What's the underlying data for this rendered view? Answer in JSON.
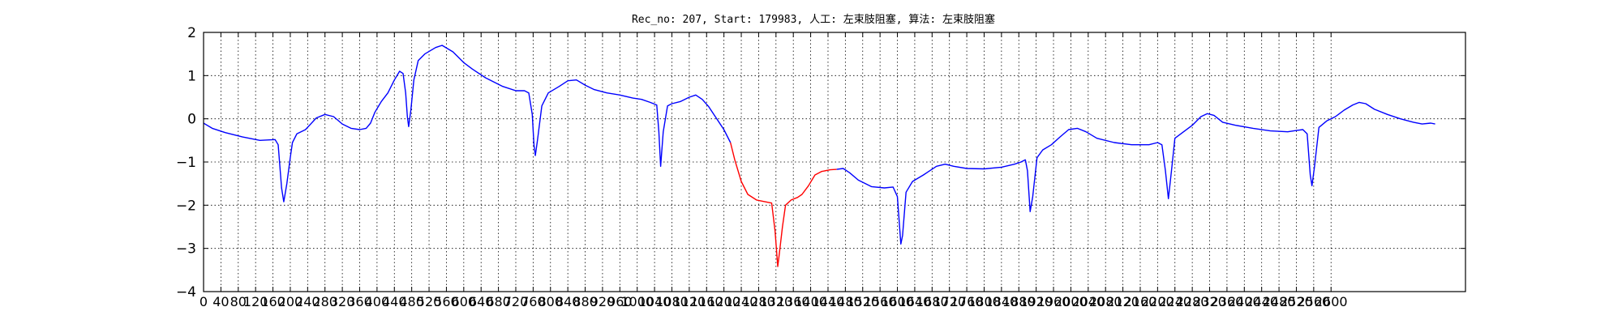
{
  "chart_data": {
    "type": "line",
    "title": "Rec_no: 207, Start: 179983, 人工: 左束肢阻塞, 算法: 左束肢阻塞",
    "xlabel": "",
    "ylabel": "",
    "xlim": [
      0,
      2910
    ],
    "ylim": [
      -4,
      2
    ],
    "grid": true,
    "yticks": [
      2,
      1,
      0,
      -1,
      -2,
      -3,
      -4
    ],
    "xticks": [
      0,
      40,
      80,
      120,
      160,
      200,
      240,
      280,
      320,
      360,
      400,
      440,
      480,
      520,
      560,
      600,
      640,
      680,
      720,
      760,
      800,
      840,
      880,
      920,
      960,
      1000,
      1040,
      1080,
      1120,
      1160,
      1200,
      1240,
      1280,
      1320,
      1360,
      1400,
      1440,
      1480,
      1520,
      1560,
      1600,
      1640,
      1680,
      1720,
      1760,
      1800,
      1840,
      1880,
      1920,
      1960,
      2000,
      2040,
      2080,
      2120,
      2160,
      2200,
      2240,
      2280,
      2320,
      2360,
      2400,
      2440,
      2480,
      2520,
      2560,
      2600
    ],
    "xtick_labels": [
      "0",
      "40",
      "80",
      "120",
      "160",
      "200",
      "240",
      "280",
      "320",
      "360",
      "400",
      "440",
      "480",
      "520",
      "560",
      "600",
      "640",
      "680",
      "720",
      "760",
      "800",
      "840",
      "880",
      "920",
      "960",
      "1000",
      "1040",
      "1080",
      "1120",
      "1160",
      "1200",
      "1240",
      "1280",
      "1320",
      "1360",
      "1400",
      "1440",
      "1480",
      "1520",
      "1560",
      "1600",
      "1640",
      "1680",
      "1720",
      "1760",
      "1800",
      "1840",
      "1880",
      "1920",
      "1960",
      "2000",
      "2040",
      "2080",
      "2120",
      "2160",
      "2200",
      "2240",
      "2280",
      "2320",
      "2360",
      "2400",
      "2440",
      "2480",
      "2520",
      "2560",
      "2600"
    ],
    "series": [
      {
        "color": "#0000ff",
        "points": [
          [
            0,
            -0.1
          ],
          [
            20,
            -0.22
          ],
          [
            50,
            -0.32
          ],
          [
            90,
            -0.42
          ],
          [
            130,
            -0.5
          ],
          [
            165,
            -0.48
          ],
          [
            172,
            -0.6
          ],
          [
            180,
            -1.6
          ],
          [
            185,
            -1.92
          ],
          [
            192,
            -1.5
          ],
          [
            200,
            -0.9
          ],
          [
            205,
            -0.55
          ],
          [
            215,
            -0.35
          ],
          [
            235,
            -0.25
          ],
          [
            260,
            0.02
          ],
          [
            280,
            0.1
          ],
          [
            300,
            0.05
          ],
          [
            320,
            -0.12
          ],
          [
            340,
            -0.22
          ],
          [
            360,
            -0.25
          ],
          [
            375,
            -0.22
          ],
          [
            385,
            -0.1
          ],
          [
            395,
            0.15
          ],
          [
            410,
            0.4
          ],
          [
            425,
            0.6
          ],
          [
            440,
            0.9
          ],
          [
            452,
            1.1
          ],
          [
            460,
            1.05
          ],
          [
            466,
            0.6
          ],
          [
            470,
            0.05
          ],
          [
            473,
            -0.18
          ],
          [
            478,
            0.2
          ],
          [
            485,
            0.9
          ],
          [
            495,
            1.35
          ],
          [
            510,
            1.5
          ],
          [
            535,
            1.65
          ],
          [
            550,
            1.7
          ],
          [
            575,
            1.55
          ],
          [
            600,
            1.3
          ],
          [
            620,
            1.15
          ],
          [
            650,
            0.95
          ],
          [
            690,
            0.75
          ],
          [
            720,
            0.65
          ],
          [
            740,
            0.65
          ],
          [
            750,
            0.6
          ],
          [
            758,
            0.1
          ],
          [
            762,
            -0.6
          ],
          [
            765,
            -0.85
          ],
          [
            770,
            -0.5
          ],
          [
            780,
            0.3
          ],
          [
            795,
            0.6
          ],
          [
            820,
            0.75
          ],
          [
            840,
            0.88
          ],
          [
            860,
            0.9
          ],
          [
            880,
            0.78
          ],
          [
            900,
            0.68
          ],
          [
            930,
            0.6
          ],
          [
            960,
            0.55
          ],
          [
            990,
            0.48
          ],
          [
            1010,
            0.45
          ],
          [
            1030,
            0.38
          ],
          [
            1045,
            0.32
          ],
          [
            1050,
            -0.3
          ],
          [
            1054,
            -1.1
          ],
          [
            1060,
            -0.3
          ],
          [
            1070,
            0.3
          ],
          [
            1080,
            0.35
          ],
          [
            1100,
            0.4
          ],
          [
            1120,
            0.5
          ],
          [
            1135,
            0.55
          ],
          [
            1150,
            0.45
          ],
          [
            1165,
            0.28
          ],
          [
            1180,
            0.05
          ],
          [
            1200,
            -0.25
          ],
          [
            1215,
            -0.55
          ]
        ]
      },
      {
        "color": "#ff0000",
        "points": [
          [
            1215,
            -0.55
          ],
          [
            1225,
            -0.95
          ],
          [
            1240,
            -1.45
          ],
          [
            1255,
            -1.75
          ],
          [
            1275,
            -1.88
          ],
          [
            1295,
            -1.92
          ],
          [
            1310,
            -1.95
          ],
          [
            1318,
            -2.6
          ],
          [
            1324,
            -3.42
          ],
          [
            1328,
            -3.1
          ],
          [
            1335,
            -2.5
          ],
          [
            1342,
            -2.0
          ],
          [
            1355,
            -1.88
          ],
          [
            1370,
            -1.82
          ],
          [
            1380,
            -1.75
          ],
          [
            1395,
            -1.55
          ],
          [
            1410,
            -1.3
          ],
          [
            1425,
            -1.22
          ],
          [
            1445,
            -1.18
          ],
          [
            1460,
            -1.17
          ]
        ]
      },
      {
        "color": "#0000ff",
        "points": [
          [
            1460,
            -1.17
          ],
          [
            1475,
            -1.15
          ],
          [
            1490,
            -1.25
          ],
          [
            1510,
            -1.42
          ],
          [
            1540,
            -1.57
          ],
          [
            1570,
            -1.6
          ],
          [
            1590,
            -1.58
          ],
          [
            1600,
            -1.8
          ],
          [
            1608,
            -2.9
          ],
          [
            1612,
            -2.7
          ],
          [
            1620,
            -1.7
          ],
          [
            1635,
            -1.45
          ],
          [
            1660,
            -1.3
          ],
          [
            1690,
            -1.1
          ],
          [
            1710,
            -1.05
          ],
          [
            1730,
            -1.1
          ],
          [
            1760,
            -1.15
          ],
          [
            1800,
            -1.16
          ],
          [
            1840,
            -1.12
          ],
          [
            1870,
            -1.05
          ],
          [
            1885,
            -1.0
          ],
          [
            1895,
            -0.95
          ],
          [
            1900,
            -1.2
          ],
          [
            1906,
            -2.15
          ],
          [
            1912,
            -1.8
          ],
          [
            1922,
            -0.9
          ],
          [
            1935,
            -0.72
          ],
          [
            1955,
            -0.6
          ],
          [
            1975,
            -0.42
          ],
          [
            1995,
            -0.25
          ],
          [
            2015,
            -0.22
          ],
          [
            2035,
            -0.3
          ],
          [
            2060,
            -0.45
          ],
          [
            2100,
            -0.55
          ],
          [
            2140,
            -0.6
          ],
          [
            2180,
            -0.6
          ],
          [
            2200,
            -0.55
          ],
          [
            2210,
            -0.6
          ],
          [
            2218,
            -1.2
          ],
          [
            2225,
            -1.85
          ],
          [
            2232,
            -1.2
          ],
          [
            2240,
            -0.45
          ],
          [
            2260,
            -0.3
          ],
          [
            2280,
            -0.15
          ],
          [
            2300,
            0.05
          ],
          [
            2315,
            0.12
          ],
          [
            2330,
            0.08
          ],
          [
            2350,
            -0.08
          ],
          [
            2380,
            -0.15
          ],
          [
            2420,
            -0.22
          ],
          [
            2460,
            -0.28
          ],
          [
            2500,
            -0.3
          ],
          [
            2520,
            -0.27
          ],
          [
            2535,
            -0.25
          ],
          [
            2545,
            -0.35
          ],
          [
            2552,
            -1.3
          ],
          [
            2556,
            -1.55
          ],
          [
            2562,
            -1.1
          ],
          [
            2572,
            -0.2
          ],
          [
            2590,
            -0.05
          ],
          [
            2610,
            0.05
          ],
          [
            2630,
            0.2
          ],
          [
            2650,
            0.32
          ],
          [
            2665,
            0.38
          ],
          [
            2680,
            0.35
          ],
          [
            2700,
            0.22
          ],
          [
            2730,
            0.1
          ],
          [
            2760,
            0.0
          ],
          [
            2790,
            -0.08
          ],
          [
            2810,
            -0.12
          ],
          [
            2830,
            -0.1
          ],
          [
            2840,
            -0.12
          ]
        ]
      }
    ]
  }
}
